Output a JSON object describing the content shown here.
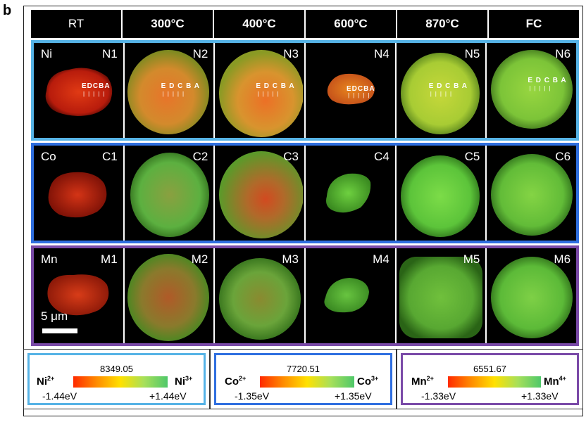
{
  "panel_letter": "b",
  "columns": [
    "RT",
    "300°C",
    "400°C",
    "600°C",
    "870°C",
    "FC"
  ],
  "rows": [
    {
      "element": "Ni",
      "labels": [
        "N1",
        "N2",
        "N3",
        "N4",
        "N5",
        "N6"
      ],
      "point_labels": [
        "EDCBA",
        "E D C B A",
        "E D C B A",
        "EDCBA",
        "E D C B A",
        "E D C B A"
      ]
    },
    {
      "element": "Co",
      "labels": [
        "C1",
        "C2",
        "C3",
        "C4",
        "C5",
        "C6"
      ]
    },
    {
      "element": "Mn",
      "labels": [
        "M1",
        "M2",
        "M3",
        "M4",
        "M5",
        "M6"
      ]
    }
  ],
  "scale_bar": "5 μm",
  "legends": [
    {
      "energy": "8349.05",
      "left_ion": "Ni",
      "left_sup": "2+",
      "right_ion": "Ni",
      "right_sup": "3+",
      "min": "-1.44eV",
      "max": "+1.44eV"
    },
    {
      "energy": "7720.51",
      "left_ion": "Co",
      "left_sup": "2+",
      "right_ion": "Co",
      "right_sup": "3+",
      "min": "-1.35eV",
      "max": "+1.35eV"
    },
    {
      "energy": "6551.67",
      "left_ion": "Mn",
      "left_sup": "2+",
      "right_ion": "Mn",
      "right_sup": "4+",
      "min": "-1.33eV",
      "max": "+1.33eV"
    }
  ],
  "colors": {
    "ni_border": "#56b3e6",
    "co_border": "#2f6fe0",
    "mn_border": "#7a4aa8",
    "gradient_low": "#ff2a00",
    "gradient_mid": "#ffe100",
    "gradient_high": "#4fc86a"
  }
}
